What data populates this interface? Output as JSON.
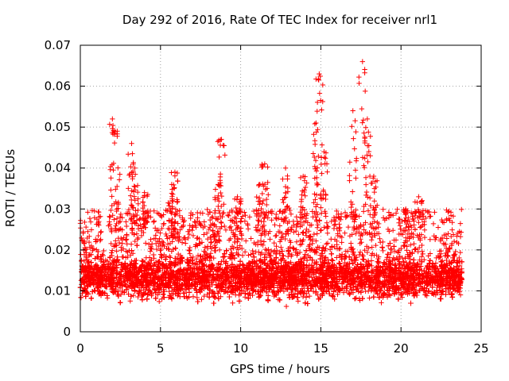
{
  "chart_data": {
    "type": "scatter",
    "title": "Day 292 of 2016, Rate Of TEC Index for receiver nrl1",
    "xlabel": "GPS time / hours",
    "ylabel": "ROTI / TECUs",
    "xlim": [
      0,
      25
    ],
    "ylim": [
      0,
      0.07
    ],
    "xticks": [
      "0",
      "5",
      "10",
      "15",
      "20",
      "25"
    ],
    "yticks": [
      "0",
      "0.01",
      "0.02",
      "0.03",
      "0.04",
      "0.05",
      "0.06",
      "0.07"
    ],
    "grid": true,
    "marker": "+",
    "color": "#ff0000",
    "x_extent": [
      0,
      23.8
    ],
    "baseline_band": {
      "low": 0.005,
      "high": 0.02,
      "typical": 0.012
    },
    "spikes": [
      {
        "x": 2.0,
        "y": 0.052
      },
      {
        "x": 2.3,
        "y": 0.049
      },
      {
        "x": 3.2,
        "y": 0.046
      },
      {
        "x": 3.4,
        "y": 0.04
      },
      {
        "x": 4.0,
        "y": 0.034
      },
      {
        "x": 5.7,
        "y": 0.036
      },
      {
        "x": 5.9,
        "y": 0.039
      },
      {
        "x": 8.6,
        "y": 0.036
      },
      {
        "x": 8.8,
        "y": 0.047
      },
      {
        "x": 9.8,
        "y": 0.033
      },
      {
        "x": 11.2,
        "y": 0.036
      },
      {
        "x": 11.5,
        "y": 0.041
      },
      {
        "x": 12.8,
        "y": 0.04
      },
      {
        "x": 13.9,
        "y": 0.038
      },
      {
        "x": 14.7,
        "y": 0.051
      },
      {
        "x": 14.9,
        "y": 0.063
      },
      {
        "x": 15.2,
        "y": 0.044
      },
      {
        "x": 17.0,
        "y": 0.054
      },
      {
        "x": 17.6,
        "y": 0.066
      },
      {
        "x": 17.9,
        "y": 0.052
      },
      {
        "x": 18.3,
        "y": 0.038
      },
      {
        "x": 20.3,
        "y": 0.03
      },
      {
        "x": 21.1,
        "y": 0.033
      }
    ]
  }
}
